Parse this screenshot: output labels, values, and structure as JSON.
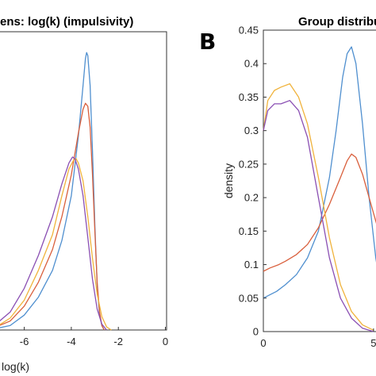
{
  "figure": {
    "left_title": "ens: log(k) (impulsivity)",
    "left_xlabel": "log(k)",
    "right_title": "Group distribu",
    "right_ylabel": "density",
    "panel_letter": "B"
  },
  "colors": {
    "blue": "#4f8fcf",
    "red": "#d95f3c",
    "yellow": "#f0b33c",
    "purple": "#8a4fb3",
    "axis": "#333333"
  },
  "chart_data": [
    {
      "type": "line",
      "title": "ens: log(k) (impulsivity)",
      "xlabel": "log(k)",
      "ylabel": "",
      "xlim": [
        -7.2,
        0.05
      ],
      "ylim": [
        0,
        1
      ],
      "xticks": [
        -6,
        -4,
        -2,
        0
      ],
      "xtick_labels": [
        "-6",
        "-4",
        "-2",
        "0"
      ],
      "series": [
        {
          "color": "blue",
          "x": [
            -7.2,
            -6.6,
            -6.0,
            -5.4,
            -4.8,
            -4.4,
            -4.0,
            -3.7,
            -3.5,
            -3.4,
            -3.35,
            -3.3,
            -3.2,
            -3.1,
            -3.0,
            -2.9,
            -2.8,
            -2.7,
            -2.6
          ],
          "y": [
            0.005,
            0.015,
            0.05,
            0.11,
            0.2,
            0.3,
            0.45,
            0.65,
            0.82,
            0.91,
            0.93,
            0.92,
            0.82,
            0.6,
            0.35,
            0.15,
            0.05,
            0.015,
            0.0
          ]
        },
        {
          "color": "red",
          "x": [
            -7.2,
            -6.6,
            -6.0,
            -5.4,
            -4.8,
            -4.4,
            -4.0,
            -3.7,
            -3.5,
            -3.4,
            -3.3,
            -3.2,
            -3.1,
            -3.0,
            -2.9,
            -2.8,
            -2.7,
            -2.6
          ],
          "y": [
            0.01,
            0.03,
            0.08,
            0.16,
            0.27,
            0.38,
            0.52,
            0.66,
            0.74,
            0.76,
            0.75,
            0.68,
            0.52,
            0.33,
            0.16,
            0.06,
            0.015,
            0.0
          ]
        },
        {
          "color": "yellow",
          "x": [
            -7.2,
            -6.6,
            -6.0,
            -5.4,
            -4.8,
            -4.4,
            -4.1,
            -3.9,
            -3.8,
            -3.7,
            -3.5,
            -3.3,
            -3.1,
            -2.9,
            -2.7,
            -2.5,
            -2.3
          ],
          "y": [
            0.01,
            0.04,
            0.1,
            0.2,
            0.32,
            0.45,
            0.54,
            0.57,
            0.575,
            0.56,
            0.5,
            0.38,
            0.24,
            0.12,
            0.045,
            0.01,
            0.0
          ]
        },
        {
          "color": "purple",
          "x": [
            -7.2,
            -6.6,
            -6.0,
            -5.4,
            -4.8,
            -4.4,
            -4.1,
            -3.95,
            -3.85,
            -3.7,
            -3.5,
            -3.3,
            -3.1,
            -2.9,
            -2.7,
            -2.5
          ],
          "y": [
            0.02,
            0.06,
            0.14,
            0.25,
            0.38,
            0.49,
            0.56,
            0.58,
            0.575,
            0.54,
            0.45,
            0.31,
            0.17,
            0.07,
            0.02,
            0.0
          ]
        }
      ]
    },
    {
      "type": "line",
      "title": "Group distribu",
      "xlabel": "",
      "ylabel": "density",
      "xlim": [
        0,
        5.4
      ],
      "ylim": [
        0,
        0.45
      ],
      "xticks": [
        0,
        5
      ],
      "xtick_labels": [
        "0",
        "5"
      ],
      "yticks": [
        0,
        0.05,
        0.1,
        0.15,
        0.2,
        0.25,
        0.3,
        0.35,
        0.4,
        0.45
      ],
      "ytick_labels": [
        "0",
        "0.05",
        "0.1",
        "0.15",
        "0.2",
        "0.25",
        "0.3",
        "0.35",
        "0.4",
        "0.45"
      ],
      "series": [
        {
          "color": "blue",
          "x": [
            0.0,
            0.3,
            0.6,
            1.0,
            1.5,
            2.0,
            2.5,
            3.0,
            3.3,
            3.6,
            3.8,
            4.0,
            4.2,
            4.5,
            4.8,
            5.1,
            5.4
          ],
          "y": [
            0.05,
            0.055,
            0.06,
            0.07,
            0.085,
            0.11,
            0.15,
            0.23,
            0.3,
            0.38,
            0.415,
            0.425,
            0.4,
            0.31,
            0.2,
            0.11,
            0.05
          ]
        },
        {
          "color": "red",
          "x": [
            0.0,
            0.3,
            0.7,
            1.0,
            1.5,
            2.0,
            2.5,
            3.0,
            3.5,
            3.8,
            4.0,
            4.2,
            4.5,
            4.8,
            5.1,
            5.4
          ],
          "y": [
            0.09,
            0.095,
            0.1,
            0.105,
            0.115,
            0.13,
            0.155,
            0.19,
            0.23,
            0.255,
            0.265,
            0.26,
            0.235,
            0.2,
            0.165,
            0.13
          ]
        },
        {
          "color": "yellow",
          "x": [
            0.0,
            0.2,
            0.5,
            0.8,
            1.2,
            1.6,
            2.0,
            2.5,
            3.0,
            3.5,
            4.0,
            4.5,
            5.0
          ],
          "y": [
            0.3,
            0.345,
            0.36,
            0.365,
            0.37,
            0.35,
            0.31,
            0.23,
            0.14,
            0.07,
            0.03,
            0.01,
            0.002
          ]
        },
        {
          "color": "purple",
          "x": [
            0.0,
            0.2,
            0.5,
            0.8,
            1.2,
            1.6,
            2.0,
            2.5,
            3.0,
            3.5,
            4.0,
            4.5,
            5.0
          ],
          "y": [
            0.3,
            0.33,
            0.34,
            0.34,
            0.345,
            0.33,
            0.29,
            0.2,
            0.11,
            0.05,
            0.02,
            0.005,
            0.0
          ]
        }
      ]
    }
  ]
}
